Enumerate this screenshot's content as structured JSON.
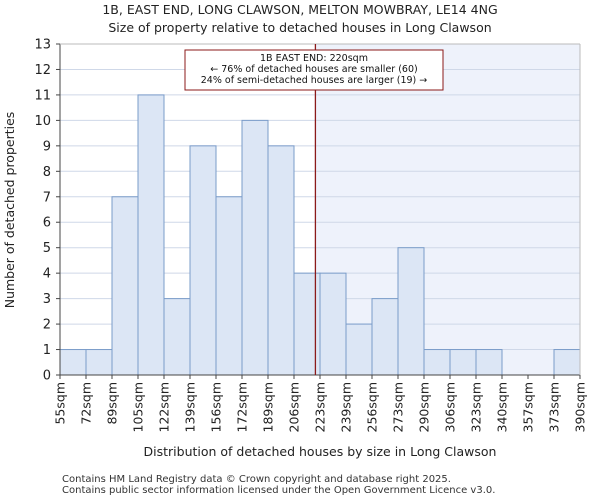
{
  "title_line1": "1B, EAST END, LONG CLAWSON, MELTON MOWBRAY, LE14 4NG",
  "title_line2": "Size of property relative to detached houses in Long Clawson",
  "footer_line1": "Contains HM Land Registry data © Crown copyright and database right 2025.",
  "footer_line2": "Contains public sector information licensed under the Open Government Licence v3.0.",
  "chart_data": {
    "type": "bar",
    "xlabel": "Distribution of detached houses by size in Long Clawson",
    "ylabel": "Number of detached properties",
    "ylim": [
      0,
      13
    ],
    "yticks": [
      0,
      1,
      2,
      3,
      4,
      5,
      6,
      7,
      8,
      9,
      10,
      11,
      12,
      13
    ],
    "bin_edges": [
      "55sqm",
      "72sqm",
      "89sqm",
      "105sqm",
      "122sqm",
      "139sqm",
      "156sqm",
      "172sqm",
      "189sqm",
      "206sqm",
      "223sqm",
      "239sqm",
      "256sqm",
      "273sqm",
      "290sqm",
      "306sqm",
      "323sqm",
      "340sqm",
      "357sqm",
      "373sqm",
      "390sqm"
    ],
    "values": [
      1,
      1,
      7,
      11,
      3,
      9,
      7,
      10,
      9,
      4,
      4,
      2,
      3,
      5,
      1,
      1,
      1,
      0,
      0,
      1
    ],
    "marker_value": 220,
    "annotation": [
      "1B EAST END: 220sqm",
      "← 76% of detached houses are smaller (60)",
      "24% of semi-detached houses are larger (19) →"
    ],
    "colors": {
      "bar_fill": "#dce6f5",
      "bar_stroke": "#7a9cc9",
      "marker": "#8b1a1a",
      "highlight_bg": "#eef2fb",
      "grid": "#cfd8e8"
    },
    "grid": true
  }
}
